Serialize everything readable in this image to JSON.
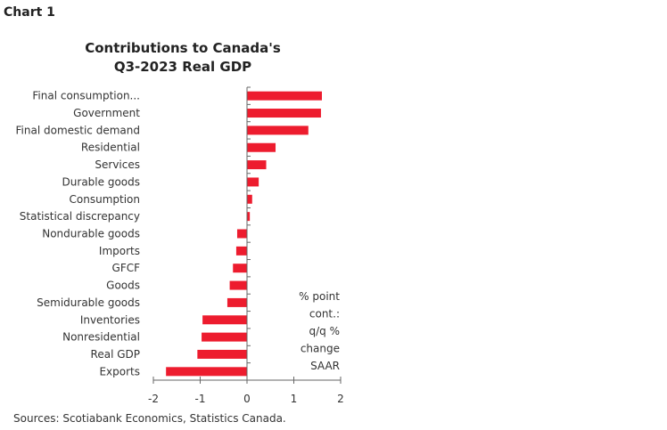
{
  "chart_label": "Chart 1",
  "source": "Sources: Scotiabank Economics, Statistics Canada.",
  "chart_data": {
    "type": "bar",
    "orientation": "horizontal",
    "title": "Contributions to Canada's Q3-2023 Real GDP",
    "title_lines": [
      "Contributions to Canada's",
      "Q3-2023 Real GDP"
    ],
    "annotation": [
      "% point",
      "cont.:",
      "q/q %",
      "change",
      "SAAR"
    ],
    "categories": [
      "Final consumption...",
      "Government",
      "Final domestic demand",
      "Residential",
      "Services",
      "Durable goods",
      "Consumption",
      "Statistical discrepancy",
      "Nondurable goods",
      "Imports",
      "GFCF",
      "Goods",
      "Semidurable goods",
      "Inventories",
      "Nonresidential",
      "Real GDP",
      "Exports"
    ],
    "values": [
      1.6,
      1.58,
      1.31,
      0.61,
      0.41,
      0.25,
      0.11,
      0.06,
      -0.21,
      -0.23,
      -0.3,
      -0.37,
      -0.42,
      -0.95,
      -0.97,
      -1.06,
      -1.73
    ],
    "xlim": [
      -2,
      2
    ],
    "xticks": [
      "-2",
      "-1",
      "0",
      "1",
      "2"
    ],
    "grid": false,
    "bar_color": "#ed1c2e"
  }
}
